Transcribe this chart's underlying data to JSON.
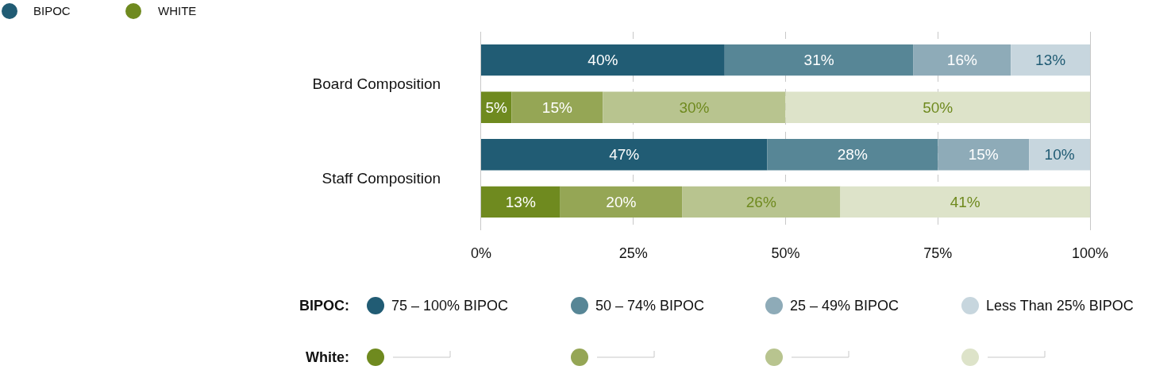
{
  "chart_data": {
    "type": "bar",
    "orientation": "horizontal",
    "stacked": true,
    "categories": [
      "Board Composition",
      null,
      "Staff Composition",
      null
    ],
    "series": [
      {
        "name": "75 – 100% BIPOC",
        "color": "#215c74",
        "values": [
          40,
          null,
          47,
          null
        ],
        "value_labels": [
          "40%",
          null,
          "47%",
          null
        ]
      },
      {
        "name": "50 – 74% BIPOC",
        "color": "#578696",
        "values": [
          31,
          null,
          28,
          null
        ],
        "value_labels": [
          "31%",
          null,
          "28%",
          null
        ]
      },
      {
        "name": "25 – 49% BIPOC",
        "color": "#8eabb8",
        "values": [
          16,
          null,
          15,
          null
        ],
        "value_labels": [
          "16%",
          null,
          "15%",
          null
        ]
      },
      {
        "name": "Less Than 25% BIPOC",
        "color": "#c7d6de",
        "values": [
          13,
          null,
          10,
          null
        ],
        "value_labels": [
          "13%",
          null,
          "10%",
          null
        ]
      },
      {
        "color": "#6f8a1f",
        "values": [
          null,
          5,
          null,
          13
        ],
        "value_labels": [
          null,
          "5%",
          null,
          "13%"
        ]
      },
      {
        "color": "#95a655",
        "values": [
          null,
          15,
          null,
          20
        ],
        "value_labels": [
          null,
          "15%",
          null,
          "20%"
        ]
      },
      {
        "color": "#b8c48f",
        "values": [
          null,
          30,
          null,
          26
        ],
        "value_labels": [
          null,
          "30%",
          null,
          "26%"
        ]
      },
      {
        "color": "#dde3c9",
        "values": [
          null,
          50,
          null,
          41
        ],
        "value_labels": [
          null,
          "50%",
          null,
          "41%"
        ]
      }
    ],
    "xlim": [
      0,
      100
    ],
    "xticks": [
      {
        "value": 0,
        "label": "0%"
      },
      {
        "value": 25,
        "label": "25%"
      },
      {
        "value": 50,
        "label": "50%"
      },
      {
        "value": 75,
        "label": "75%"
      },
      {
        "value": 100,
        "label": "100%"
      }
    ],
    "grid": "x",
    "legend": "bottom",
    "annotations": [
      "BIPOC",
      "WHITE",
      "BIPOC:",
      "White:"
    ]
  }
}
